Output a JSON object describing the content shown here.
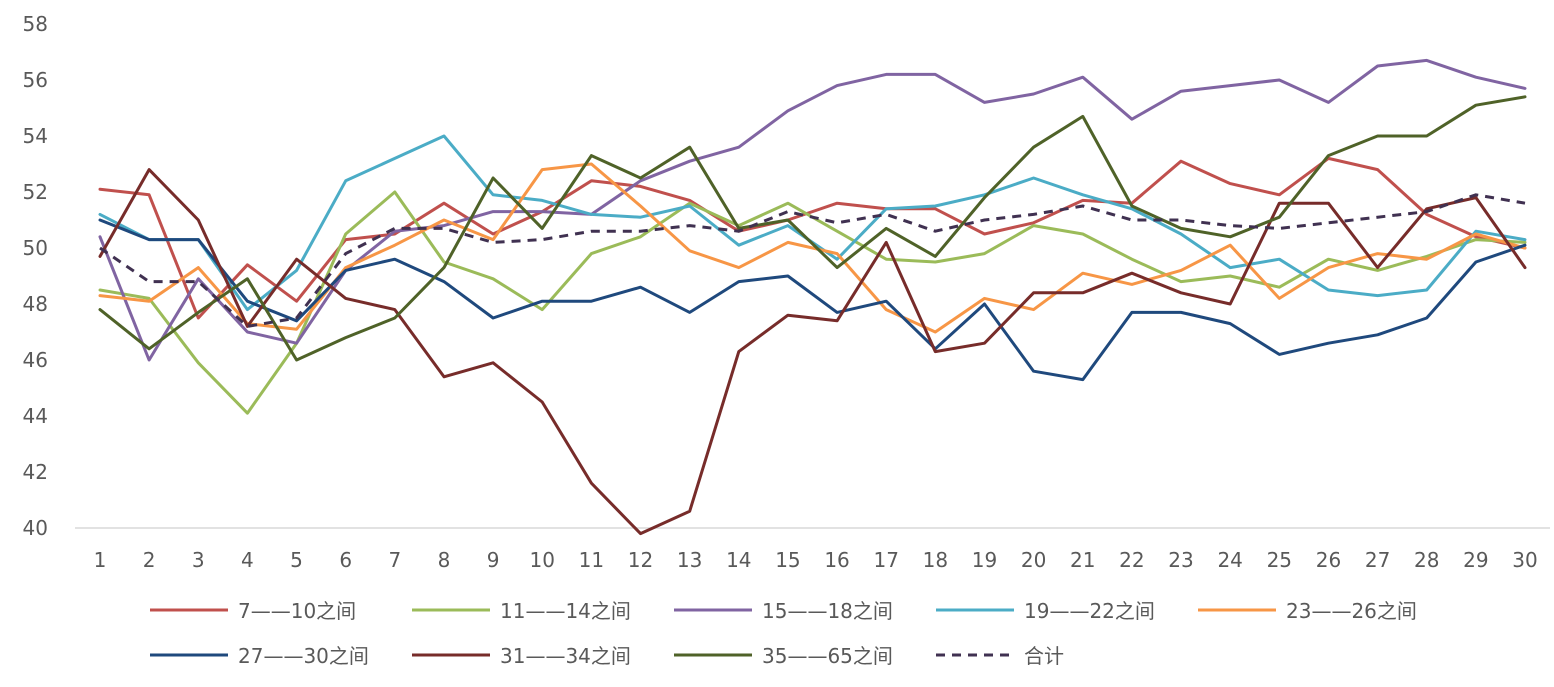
{
  "chart_data": {
    "type": "line",
    "title": "",
    "xlabel": "",
    "ylabel": "",
    "ylim": [
      40,
      58
    ],
    "yticks": [
      40,
      42,
      44,
      46,
      48,
      50,
      52,
      54,
      56,
      58
    ],
    "grid": false,
    "legend_position": "bottom",
    "categories": [
      "1",
      "2",
      "3",
      "4",
      "5",
      "6",
      "7",
      "8",
      "9",
      "10",
      "11",
      "12",
      "13",
      "14",
      "15",
      "16",
      "17",
      "18",
      "19",
      "20",
      "21",
      "22",
      "23",
      "24",
      "25",
      "26",
      "27",
      "28",
      "29",
      "30"
    ],
    "series": [
      {
        "name": "7——10之间",
        "color": "#C0504D",
        "dashed": false,
        "values": [
          52.1,
          51.9,
          47.5,
          49.4,
          48.1,
          50.3,
          50.5,
          51.6,
          50.5,
          51.3,
          52.4,
          52.2,
          51.7,
          50.6,
          51.0,
          51.6,
          51.4,
          51.4,
          50.5,
          50.9,
          51.7,
          51.6,
          53.1,
          52.3,
          51.9,
          53.2,
          52.8,
          51.2,
          50.4,
          50.0
        ]
      },
      {
        "name": "11——14之间",
        "color": "#9BBB59",
        "dashed": false,
        "values": [
          48.5,
          48.2,
          45.9,
          44.1,
          46.6,
          50.5,
          52.0,
          49.5,
          48.9,
          47.8,
          49.8,
          50.4,
          51.6,
          50.8,
          51.6,
          50.6,
          49.6,
          49.5,
          49.8,
          50.8,
          50.5,
          49.6,
          48.8,
          49.0,
          48.6,
          49.6,
          49.2,
          49.7,
          50.3,
          50.2
        ]
      },
      {
        "name": "15——18之间",
        "color": "#8064A2",
        "dashed": false,
        "values": [
          50.4,
          46.0,
          48.9,
          47.0,
          46.6,
          49.2,
          50.6,
          50.8,
          51.3,
          51.3,
          51.2,
          52.4,
          53.1,
          53.6,
          54.9,
          55.8,
          56.2,
          56.2,
          55.2,
          55.5,
          56.1,
          54.6,
          55.6,
          55.8,
          56.0,
          55.2,
          56.5,
          56.7,
          56.1,
          55.7
        ]
      },
      {
        "name": "19——22之间",
        "color": "#4BACC6",
        "dashed": false,
        "values": [
          51.2,
          50.3,
          50.3,
          47.8,
          49.2,
          52.4,
          53.2,
          54.0,
          51.9,
          51.7,
          51.2,
          51.1,
          51.5,
          50.1,
          50.8,
          49.6,
          51.4,
          51.5,
          51.9,
          52.5,
          51.9,
          51.4,
          50.5,
          49.3,
          49.6,
          48.5,
          48.3,
          48.5,
          50.6,
          50.3
        ]
      },
      {
        "name": "23——26之间",
        "color": "#F79646",
        "dashed": false,
        "values": [
          48.3,
          48.1,
          49.3,
          47.3,
          47.1,
          49.3,
          50.1,
          51.0,
          50.3,
          52.8,
          53.0,
          51.5,
          49.9,
          49.3,
          50.2,
          49.8,
          47.8,
          47.0,
          48.2,
          47.8,
          49.1,
          48.7,
          49.2,
          50.1,
          48.2,
          49.3,
          49.8,
          49.6,
          50.5,
          50.0
        ]
      },
      {
        "name": "27——30之间",
        "color": "#1F497D",
        "dashed": false,
        "values": [
          51.0,
          50.3,
          50.3,
          48.1,
          47.4,
          49.2,
          49.6,
          48.8,
          47.5,
          48.1,
          48.1,
          48.6,
          47.7,
          48.8,
          49.0,
          47.7,
          48.1,
          46.4,
          48.0,
          45.6,
          45.3,
          47.7,
          47.7,
          47.3,
          46.2,
          46.6,
          46.9,
          47.5,
          49.5,
          50.1
        ]
      },
      {
        "name": "31——34之间",
        "color": "#772C2A",
        "dashed": false,
        "values": [
          49.7,
          52.8,
          51.0,
          47.2,
          49.6,
          48.2,
          47.8,
          45.4,
          45.9,
          44.5,
          41.6,
          39.8,
          40.6,
          46.3,
          47.6,
          47.4,
          50.2,
          46.3,
          46.6,
          48.4,
          48.4,
          49.1,
          48.4,
          48.0,
          51.6,
          51.6,
          49.3,
          51.4,
          51.8,
          49.3
        ]
      },
      {
        "name": "35——65之间",
        "color": "#4F6228",
        "dashed": false,
        "values": [
          47.8,
          46.4,
          47.7,
          48.9,
          46.0,
          46.8,
          47.5,
          49.3,
          52.5,
          50.7,
          53.3,
          52.5,
          53.6,
          50.7,
          51.0,
          49.3,
          50.7,
          49.7,
          51.8,
          53.6,
          54.7,
          51.5,
          50.7,
          50.4,
          51.1,
          53.3,
          54.0,
          54.0,
          55.1,
          55.4
        ]
      },
      {
        "name": "合计",
        "color": "#403151",
        "dashed": true,
        "values": [
          50.0,
          48.8,
          48.8,
          47.2,
          47.5,
          49.8,
          50.7,
          50.7,
          50.2,
          50.3,
          50.6,
          50.6,
          50.8,
          50.6,
          51.3,
          50.9,
          51.2,
          50.6,
          51.0,
          51.2,
          51.5,
          51.0,
          51.0,
          50.8,
          50.7,
          50.9,
          51.1,
          51.3,
          51.9,
          51.6
        ]
      }
    ]
  }
}
